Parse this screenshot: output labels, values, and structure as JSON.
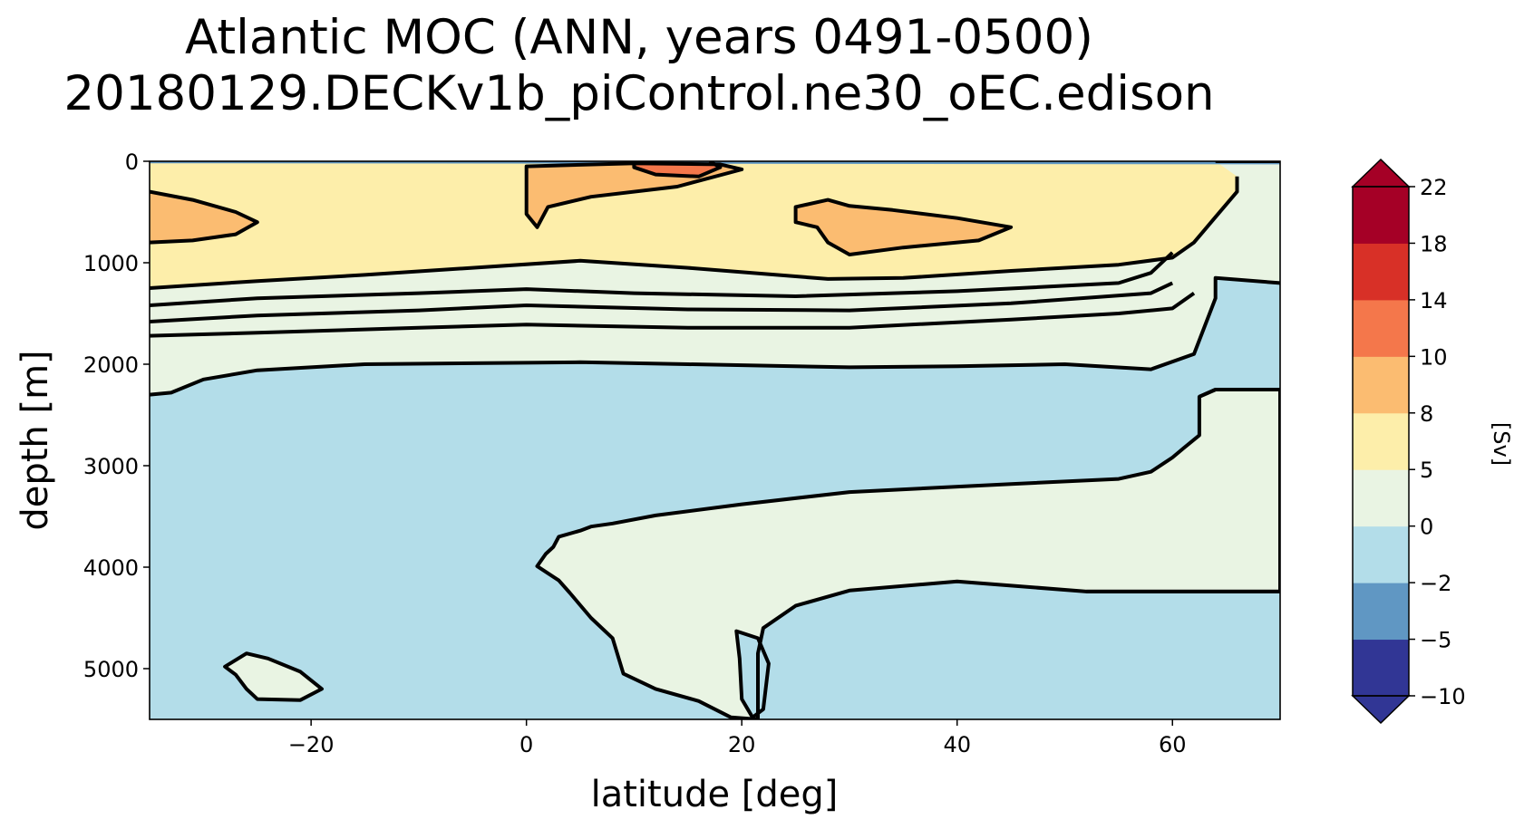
{
  "chart_data": {
    "type": "contour",
    "title_line1": "Atlantic MOC (ANN, years 0491-0500)",
    "title_line2": "20180129.DECKv1b_piControl.ne30_oEC.edison",
    "xlabel": "latitude [deg]",
    "ylabel": "depth [m]",
    "xlim": [
      -35,
      70
    ],
    "ylim": [
      5500,
      0
    ],
    "xticks": [
      -20,
      0,
      20,
      40,
      60
    ],
    "xtick_labels": [
      "−20",
      "0",
      "20",
      "40",
      "60"
    ],
    "yticks": [
      0,
      1000,
      2000,
      3000,
      4000,
      5000
    ],
    "ytick_labels": [
      "0",
      "1000",
      "2000",
      "3000",
      "4000",
      "5000"
    ],
    "colorbar": {
      "label": "[Sv]",
      "levels": [
        -10,
        -5,
        -2,
        0,
        5,
        8,
        10,
        14,
        18,
        22
      ],
      "level_labels": [
        "−10",
        "−5",
        "−2",
        "0",
        "5",
        "8",
        "10",
        "14",
        "18",
        "22"
      ],
      "colors": [
        "#313695",
        "#6097c3",
        "#b3dde9",
        "#e9f4e3",
        "#fdeeaa",
        "#fbbc71",
        "#f4774b",
        "#d83027",
        "#a50026"
      ],
      "extend": "both",
      "extend_low_color": "#313695",
      "extend_high_color": "#a50026"
    },
    "approx_regions": [
      {
        "range_sv": "0 to 5",
        "region": "surface to ~2000 m across latitudes, and a deep cell from ~3100 m to ~5500 m between ~1°N and 70°N"
      },
      {
        "range_sv": "5 to 8",
        "region": "upper ~1000 m, -35° to ~63°"
      },
      {
        "range_sv": "8 to 10",
        "region": "cores near -35° to -25° at ~600 m, ~0° to 20° at ~300 m, 25° to 45° at ~650 m"
      },
      {
        "range_sv": "10 to 14",
        "region": "small core near 10° to 17° at ~100 m"
      },
      {
        "range_sv": "-2 to 0",
        "region": "below ~2000 m and the deep basin elsewhere"
      }
    ]
  }
}
